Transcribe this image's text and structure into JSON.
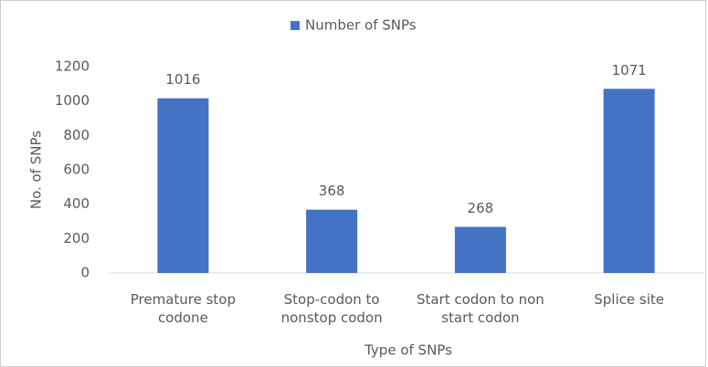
{
  "chart_data": {
    "type": "bar",
    "legend": "Number of SNPs",
    "categories": [
      "Premature stop codone",
      "Stop-codon to nonstop codon",
      "Start codon to non start codon",
      "Splice site"
    ],
    "values": [
      1016,
      368,
      268,
      1071
    ],
    "color": "#4472c4",
    "ylabel": "No. of SNPs",
    "xlabel": "Type of SNPs",
    "ylim": [
      0,
      1200
    ],
    "yticks": [
      0,
      200,
      400,
      600,
      800,
      1000,
      1200
    ],
    "grid": false
  }
}
